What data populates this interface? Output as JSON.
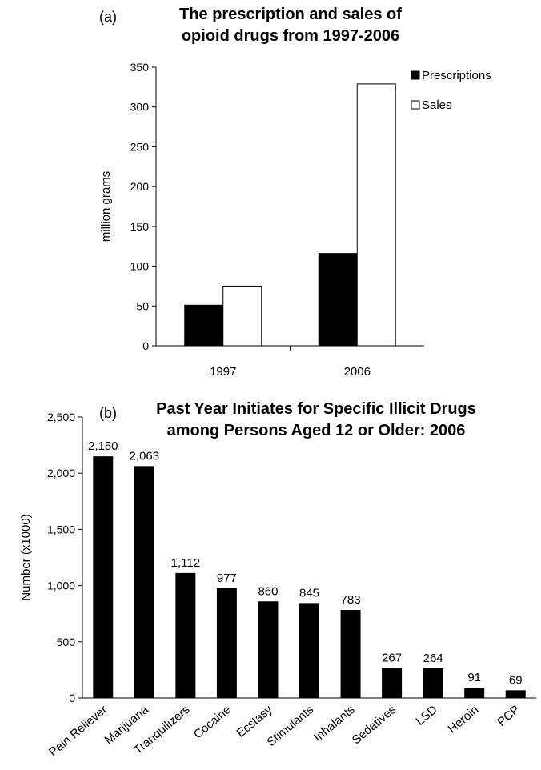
{
  "chart_data": [
    {
      "panel_label": "(a)",
      "type": "bar",
      "title_lines": [
        "The prescription and sales of",
        "opioid drugs from 1997-2006"
      ],
      "xlabel": "",
      "ylabel": "million grams",
      "categories": [
        "1997",
        "2006"
      ],
      "series": [
        {
          "name": "Prescriptions",
          "values": [
            51,
            116
          ],
          "color": "#000000"
        },
        {
          "name": "Sales",
          "values": [
            75,
            329
          ],
          "color": "#ffffff"
        }
      ],
      "ylim": [
        0,
        350
      ],
      "yticks": [
        0,
        50,
        100,
        150,
        200,
        250,
        300,
        350
      ],
      "ytick_labels": [
        "0",
        "50",
        "100",
        "150",
        "200",
        "250",
        "300",
        "350"
      ],
      "legend": "top-right",
      "grid": false
    },
    {
      "panel_label": "(b)",
      "type": "bar",
      "title_lines": [
        "Past Year Initiates for Specific Illicit Drugs",
        "among Persons Aged 12 or Older: 2006"
      ],
      "xlabel": "",
      "ylabel": "Number (x1000)",
      "categories": [
        "Pain Reliever",
        "Marijuana",
        "Tranquilizers",
        "Cocaine",
        "Ecstasy",
        "Stimulants",
        "Inhalants",
        "Sedatives",
        "LSD",
        "Heroin",
        "PCP"
      ],
      "values": [
        2150,
        2063,
        1112,
        977,
        860,
        845,
        783,
        267,
        264,
        91,
        69
      ],
      "data_labels": [
        "2,150",
        "2,063",
        "1,112",
        "977",
        "860",
        "845",
        "783",
        "267",
        "264",
        "91",
        "69"
      ],
      "bar_color": "#000000",
      "ylim": [
        0,
        2500
      ],
      "yticks": [
        0,
        500,
        1000,
        1500,
        2000,
        2500
      ],
      "ytick_labels": [
        "0",
        "500",
        "1,000",
        "1,500",
        "2,000",
        "2,500"
      ],
      "legend": "none",
      "grid": false
    }
  ]
}
